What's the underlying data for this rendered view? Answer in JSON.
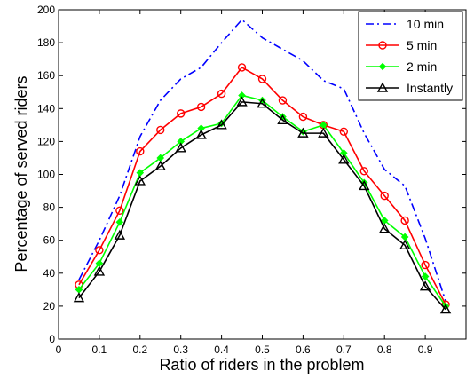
{
  "chart_data": {
    "type": "line",
    "title": "",
    "xlabel": "Ratio of riders in the problem",
    "ylabel": "Percentage of served riders",
    "xlim": [
      0,
      1
    ],
    "ylim": [
      0,
      200
    ],
    "x_ticks": [
      0,
      0.1,
      0.2,
      0.3,
      0.4,
      0.5,
      0.6,
      0.7,
      0.8,
      0.9
    ],
    "x_tick_labels": [
      "0",
      "0.1",
      "0.2",
      "0.3",
      "0.4",
      "0.5",
      "0.6",
      "0.7",
      "0.8",
      "0.9"
    ],
    "y_ticks": [
      0,
      20,
      40,
      60,
      80,
      100,
      120,
      140,
      160,
      180,
      200
    ],
    "y_tick_labels": [
      "0",
      "20",
      "40",
      "60",
      "80",
      "100",
      "120",
      "140",
      "160",
      "180",
      "200"
    ],
    "grid": false,
    "legend_position": "top-right",
    "x": [
      0.05,
      0.1,
      0.15,
      0.2,
      0.25,
      0.3,
      0.35,
      0.4,
      0.45,
      0.5,
      0.55,
      0.6,
      0.65,
      0.7,
      0.75,
      0.8,
      0.85,
      0.9,
      0.95
    ],
    "series": [
      {
        "name": "10 min",
        "color": "#0000ff",
        "line_style": "dash-dot",
        "marker": "none",
        "values": [
          36,
          60,
          87,
          123,
          145,
          158,
          165,
          180,
          194,
          183,
          176,
          169,
          157,
          152,
          125,
          103,
          93,
          61,
          23
        ]
      },
      {
        "name": "5 min",
        "color": "#ff0000",
        "line_style": "solid",
        "marker": "circle",
        "values": [
          33,
          54,
          78,
          114,
          127,
          137,
          141,
          149,
          165,
          158,
          145,
          135,
          130,
          126,
          102,
          87,
          72,
          45,
          21
        ]
      },
      {
        "name": "2 min",
        "color": "#00ff00",
        "line_style": "solid",
        "marker": "diamond",
        "values": [
          30,
          46,
          71,
          101,
          110,
          120,
          128,
          131,
          148,
          145,
          135,
          126,
          130,
          113,
          95,
          72,
          62,
          38,
          20
        ]
      },
      {
        "name": "Instantly",
        "color": "#000000",
        "line_style": "solid",
        "marker": "triangle",
        "values": [
          25,
          41,
          63,
          96,
          105,
          116,
          124,
          130,
          144,
          143,
          133,
          125,
          125,
          109,
          93,
          67,
          57,
          32,
          18
        ]
      }
    ]
  }
}
